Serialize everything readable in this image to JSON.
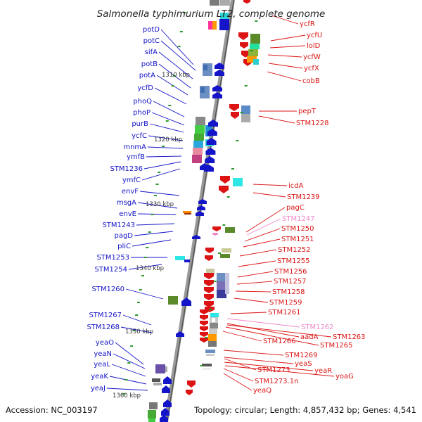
{
  "title": "Salmonella typhimurium LT2, complete genome",
  "accession": "Accession: NC_003197",
  "topology": "Topology: circular; Length: 4,857,432 bp; Genes: 4,541",
  "scale_labels": [
    "1310 kbp",
    "1320 kbp",
    "1330 kbp",
    "1340 kbp",
    "1350 kbp",
    "1360 kbp"
  ],
  "genes_left": [
    "potD",
    "potC",
    "sifA",
    "potB",
    "potA",
    "ycfD",
    "phoQ",
    "phoP",
    "purB",
    "ycfC",
    "mnmA",
    "ymfB",
    "STM1236",
    "ymfC",
    "envF",
    "msgA",
    "envE",
    "STM1243",
    "pagD",
    "pliC",
    "STM1253",
    "STM1254",
    "STM1260",
    "STM1267",
    "STM1268",
    "yeaO",
    "yeaN",
    "yeaL",
    "yeaK",
    "yeaJ"
  ],
  "genes_right": [
    "ycfR",
    "ycfU",
    "lolD",
    "ycfW",
    "ycfX",
    "cobB",
    "pepT",
    "STM1228",
    "icdA",
    "STM1239",
    "pagC",
    "STM1247",
    "STM1250",
    "STM1251",
    "STM1252",
    "STM1255",
    "STM1256",
    "STM1257",
    "STM1258",
    "STM1259",
    "STM1261",
    "STM1262",
    "aadA",
    "STM1263",
    "STM1265",
    "STM1266",
    "STM1269",
    "yeaS",
    "yeaR",
    "yoaG",
    "STM1273",
    "STM1273.1n",
    "yeaQ"
  ],
  "colors": {
    "forward_strand": "#1414c8",
    "reverse_strand": "#dc1414",
    "pseudo_label": "#ee88cc",
    "backbone": "#888888"
  }
}
